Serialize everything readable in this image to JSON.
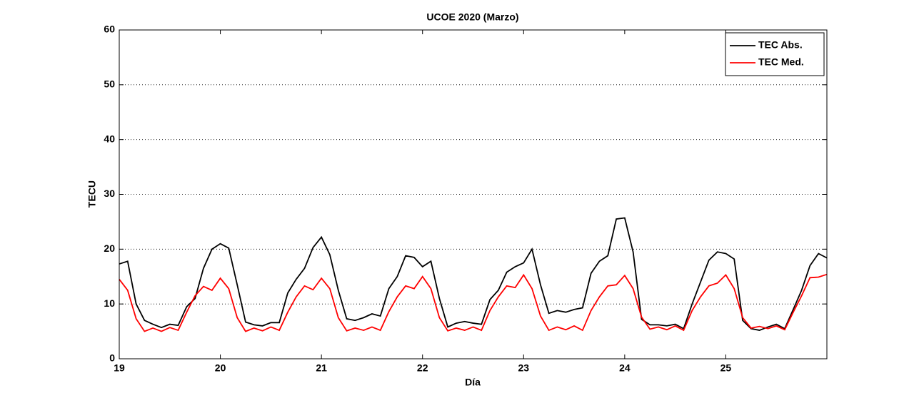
{
  "chart_data": {
    "type": "line",
    "title": "UCOE 2020 (Marzo)",
    "xlabel": "Día",
    "ylabel": "TECU",
    "x": [
      19,
      19.083,
      19.167,
      19.25,
      19.333,
      19.417,
      19.5,
      19.583,
      19.667,
      19.75,
      19.833,
      19.917,
      20,
      20.083,
      20.167,
      20.25,
      20.333,
      20.417,
      20.5,
      20.583,
      20.667,
      20.75,
      20.833,
      20.917,
      21,
      21.083,
      21.167,
      21.25,
      21.333,
      21.417,
      21.5,
      21.583,
      21.667,
      21.75,
      21.833,
      21.917,
      22,
      22.083,
      22.167,
      22.25,
      22.333,
      22.417,
      22.5,
      22.583,
      22.667,
      22.75,
      22.833,
      22.917,
      23,
      23.083,
      23.167,
      23.25,
      23.333,
      23.417,
      23.5,
      23.583,
      23.667,
      23.75,
      23.833,
      23.917,
      24,
      24.083,
      24.167,
      24.25,
      24.333,
      24.417,
      24.5,
      24.583,
      24.667,
      24.75,
      24.833,
      24.917,
      25,
      25.083,
      25.167,
      25.25,
      25.333,
      25.417,
      25.5,
      25.583,
      25.667,
      25.75,
      25.833,
      25.917,
      26
    ],
    "series": [
      {
        "name": "TEC Abs.",
        "color": "#000000",
        "values": [
          17.3,
          17.8,
          10,
          7,
          6.3,
          5.7,
          6.3,
          6.1,
          9.5,
          11,
          16.5,
          20,
          21,
          20.2,
          13.5,
          6.7,
          6.2,
          6,
          6.6,
          6.6,
          12,
          14.5,
          16.5,
          20.3,
          22.2,
          19,
          12.5,
          7.3,
          7,
          7.5,
          8.2,
          7.8,
          12.8,
          15,
          18.8,
          18.5,
          16.8,
          17.8,
          11,
          5.8,
          6.5,
          6.8,
          6.5,
          6.3,
          10.8,
          12.5,
          15.8,
          16.8,
          17.5,
          20,
          13.5,
          8.3,
          8.8,
          8.5,
          9,
          9.3,
          15.6,
          17.8,
          18.8,
          25.5,
          25.7,
          19.5,
          7.2,
          6.2,
          6.2,
          6,
          6.3,
          5.5,
          10,
          14,
          18,
          19.5,
          19.2,
          18.2,
          7,
          5.5,
          5.2,
          5.8,
          6.3,
          5.5,
          9,
          12.5,
          17,
          19.2,
          18.4
        ]
      },
      {
        "name": "TEC Med.",
        "color": "#ff0000",
        "values": [
          14.5,
          12.5,
          7.3,
          5,
          5.6,
          5,
          5.7,
          5.2,
          8.5,
          11.5,
          13.2,
          12.5,
          14.7,
          12.8,
          7.5,
          5,
          5.6,
          5.1,
          5.8,
          5.2,
          8.5,
          11.3,
          13.3,
          12.6,
          14.7,
          12.8,
          7.5,
          5.1,
          5.6,
          5.2,
          5.8,
          5.2,
          8.6,
          11.3,
          13.3,
          12.8,
          15,
          12.8,
          7.5,
          5.1,
          5.6,
          5.2,
          5.8,
          5.2,
          8.8,
          11.3,
          13.3,
          13,
          15.3,
          12.8,
          7.8,
          5.2,
          5.8,
          5.3,
          6,
          5.2,
          8.8,
          11.3,
          13.3,
          13.5,
          15.2,
          12.8,
          7.6,
          5.4,
          5.8,
          5.3,
          6,
          5.2,
          8.8,
          11.3,
          13.3,
          13.8,
          15.3,
          12.8,
          7.5,
          5.6,
          5.9,
          5.5,
          6,
          5.3,
          8.5,
          11.5,
          14.8,
          14.9,
          15.4
        ]
      }
    ],
    "xlim": [
      19,
      26
    ],
    "xticks": [
      19,
      20,
      21,
      22,
      23,
      24,
      25
    ],
    "ylim": [
      0,
      60
    ],
    "yticks": [
      0,
      10,
      20,
      30,
      40,
      50,
      60
    ],
    "grid": true,
    "legend": "top-right"
  }
}
